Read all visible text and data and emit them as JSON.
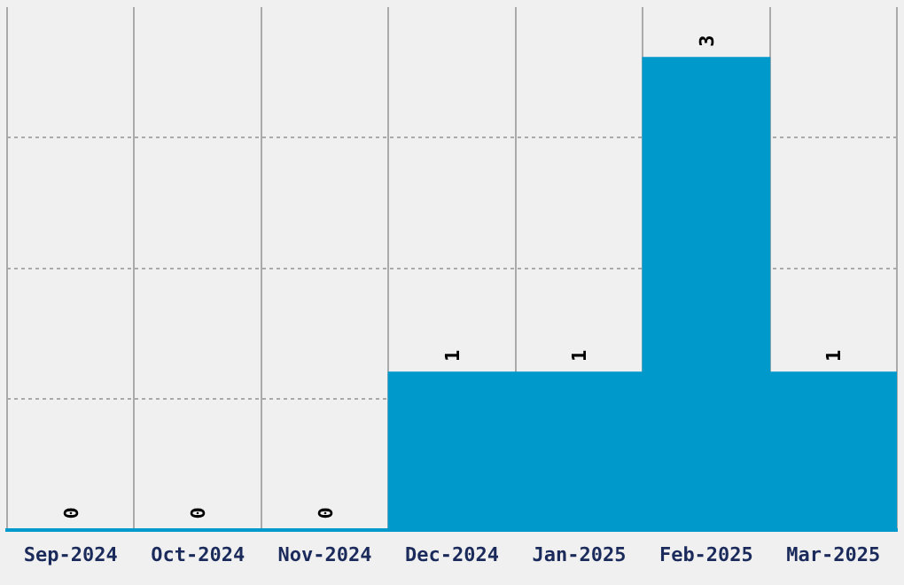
{
  "chart_data": {
    "type": "bar",
    "categories": [
      "Sep-2024",
      "Oct-2024",
      "Nov-2024",
      "Dec-2024",
      "Jan-2025",
      "Feb-2025",
      "Mar-2025"
    ],
    "values": [
      0,
      0,
      0,
      1,
      1,
      3,
      1
    ],
    "color": "#0099cc",
    "data_labels": true,
    "grid": true,
    "tick_labels": "x",
    "ylim": [
      0,
      3.32
    ],
    "yticks": [
      {
        "value": 0,
        "label": null
      },
      {
        "value": 0.83,
        "label": null
      },
      {
        "value": 1.66,
        "label": null
      },
      {
        "value": 2.49,
        "label": null
      }
    ]
  }
}
